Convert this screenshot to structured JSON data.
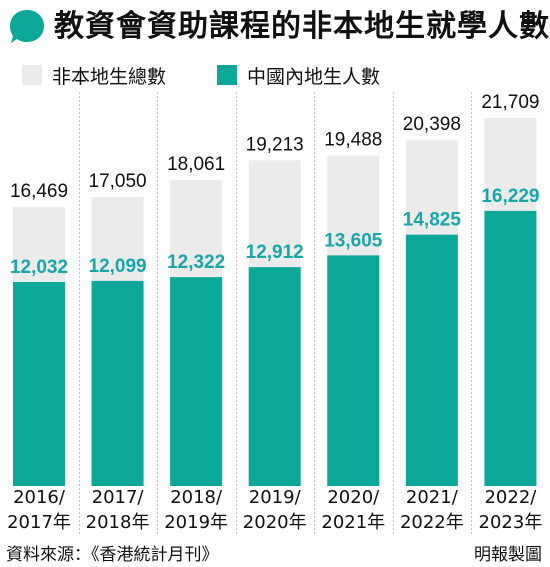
{
  "header": {
    "title": "教資會資助課程的非本地生就學人數"
  },
  "colors": {
    "accent": "#0ba89a",
    "total_bar": "#ebebeb",
    "mainland_bar": "#0ba89a",
    "mainland_label": "#19a6a8",
    "divider": "#c8c8c8"
  },
  "legend": {
    "total_label": "非本地生總數",
    "mainland_label": "中國內地生人數"
  },
  "chart_data": {
    "type": "bar",
    "title": "教資會資助課程的非本地生就學人數",
    "categories": [
      [
        "2016/",
        "2017年"
      ],
      [
        "2017/",
        "2018年"
      ],
      [
        "2018/",
        "2019年"
      ],
      [
        "2019/",
        "2020年"
      ],
      [
        "2020/",
        "2021年"
      ],
      [
        "2021/",
        "2022年"
      ],
      [
        "2022/",
        "2023年"
      ]
    ],
    "series": [
      {
        "name": "非本地生總數",
        "values": [
          16469,
          17050,
          18061,
          19213,
          19488,
          20398,
          21709
        ],
        "labels": [
          "16,469",
          "17,050",
          "18,061",
          "19,213",
          "19,488",
          "20,398",
          "21,709"
        ]
      },
      {
        "name": "中國內地生人數",
        "values": [
          12032,
          12099,
          12322,
          12912,
          13605,
          14825,
          16229
        ],
        "labels": [
          "12,032",
          "12,099",
          "12,322",
          "12,912",
          "13,605",
          "14,825",
          "16,229"
        ]
      }
    ],
    "ylim": [
      0,
      21709
    ],
    "grid": false,
    "legend_position": "top-left"
  },
  "footer": {
    "source": "資料來源：《香港統計月刊》",
    "credit": "明報製圖"
  }
}
